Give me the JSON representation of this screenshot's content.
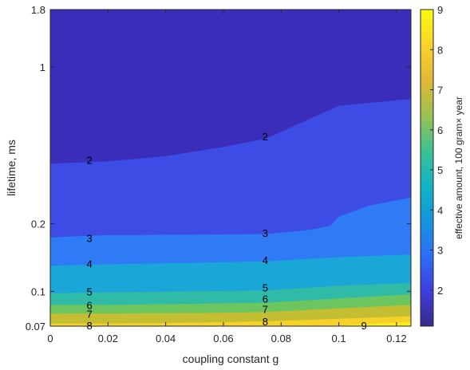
{
  "chart_data": {
    "type": "contourf",
    "xlabel": "coupling constant g",
    "ylabel": "lifetime, ms",
    "colorbar_label": "effective amount, 100 gram× year",
    "x_ticks": [
      "0",
      "0.02",
      "0.04",
      "0.06",
      "0.08",
      "0.1",
      "0.12"
    ],
    "x_tick_values": [
      0,
      0.02,
      0.04,
      0.06,
      0.08,
      0.1,
      0.12
    ],
    "xlim": [
      0,
      0.125
    ],
    "y_scale": "log",
    "y_ticks": [
      "1.8",
      "1",
      "0.2",
      "0.1",
      "0.07"
    ],
    "y_tick_values": [
      1.8,
      1,
      0.2,
      0.1,
      0.07
    ],
    "ylim": [
      0.07,
      1.8
    ],
    "colorbar_ticks": [
      "2",
      "3",
      "4",
      "5",
      "6",
      "7",
      "8",
      "9"
    ],
    "colorbar_tick_values": [
      2,
      3,
      4,
      5,
      6,
      7,
      8,
      9
    ],
    "colorbar_range": [
      1.1,
      9
    ],
    "colormap": "parula",
    "contour_lines": [
      {
        "level": 2,
        "label": "2",
        "label_positions": [
          [
            0.0136,
            0.385
          ],
          [
            0.0745,
            0.49
          ]
        ],
        "points": [
          [
            0,
            0.37
          ],
          [
            0.02,
            0.38
          ],
          [
            0.04,
            0.4
          ],
          [
            0.06,
            0.44
          ],
          [
            0.075,
            0.48
          ],
          [
            0.085,
            0.55
          ],
          [
            0.1,
            0.67
          ],
          [
            0.125,
            0.72
          ]
        ]
      },
      {
        "level": 3,
        "label": "3",
        "label_positions": [
          [
            0.0136,
            0.173
          ],
          [
            0.0745,
            0.182
          ]
        ],
        "points": [
          [
            0,
            0.174
          ],
          [
            0.02,
            0.178
          ],
          [
            0.05,
            0.179
          ],
          [
            0.075,
            0.18
          ],
          [
            0.09,
            0.188
          ],
          [
            0.097,
            0.196
          ],
          [
            0.1,
            0.215
          ],
          [
            0.11,
            0.24
          ],
          [
            0.125,
            0.262
          ]
        ]
      },
      {
        "level": 4,
        "label": "4",
        "label_positions": [
          [
            0.0136,
            0.133
          ],
          [
            0.0745,
            0.138
          ]
        ],
        "points": [
          [
            0,
            0.13
          ],
          [
            0.02,
            0.132
          ],
          [
            0.05,
            0.134
          ],
          [
            0.075,
            0.136
          ],
          [
            0.1,
            0.142
          ],
          [
            0.125,
            0.146
          ]
        ]
      },
      {
        "level": 5,
        "label": "5",
        "label_positions": [
          [
            0.0136,
            0.1
          ],
          [
            0.0745,
            0.104
          ]
        ],
        "points": [
          [
            0,
            0.098
          ],
          [
            0.02,
            0.099
          ],
          [
            0.05,
            0.1
          ],
          [
            0.075,
            0.101
          ],
          [
            0.1,
            0.106
          ],
          [
            0.125,
            0.109
          ]
        ]
      },
      {
        "level": 6,
        "label": "6",
        "label_positions": [
          [
            0.0136,
            0.087
          ],
          [
            0.0745,
            0.093
          ]
        ],
        "points": [
          [
            0,
            0.087
          ],
          [
            0.02,
            0.087
          ],
          [
            0.05,
            0.088
          ],
          [
            0.075,
            0.089
          ],
          [
            0.1,
            0.093
          ],
          [
            0.125,
            0.097
          ]
        ]
      },
      {
        "level": 7,
        "label": "7",
        "label_positions": [
          [
            0.0136,
            0.0795
          ],
          [
            0.0745,
            0.0835
          ]
        ],
        "points": [
          [
            0,
            0.0795
          ],
          [
            0.02,
            0.0798
          ],
          [
            0.05,
            0.08
          ],
          [
            0.075,
            0.081
          ],
          [
            0.1,
            0.084
          ],
          [
            0.125,
            0.087
          ]
        ]
      },
      {
        "level": 8,
        "label": "8",
        "label_positions": [
          [
            0.0136,
            0.0705
          ],
          [
            0.0745,
            0.0735
          ]
        ],
        "points": [
          [
            0,
            0.0718
          ],
          [
            0.02,
            0.072
          ],
          [
            0.05,
            0.0725
          ],
          [
            0.075,
            0.0735
          ],
          [
            0.1,
            0.0755
          ],
          [
            0.125,
            0.0775
          ]
        ]
      },
      {
        "level": 9,
        "label": "9",
        "label_positions": [
          [
            0.1087,
            0.0705
          ]
        ],
        "points": [
          [
            0.098,
            0.07
          ],
          [
            0.11,
            0.0715
          ],
          [
            0.125,
            0.073
          ]
        ]
      }
    ]
  },
  "colors": {
    "regions": [
      "#3a2dba",
      "#3e4ce6",
      "#2f7bf5",
      "#1ba6d8",
      "#30bba9",
      "#6dc560",
      "#c4be33",
      "#f5d12a",
      "#f9f018"
    ],
    "gradient": [
      "#352a87",
      "#3e3ee0",
      "#2c6ff7",
      "#1495dd",
      "#10b5c5",
      "#3dc293",
      "#9cc150",
      "#e2b836",
      "#fbd32c",
      "#f9fb0e"
    ],
    "axis": "#262626"
  }
}
